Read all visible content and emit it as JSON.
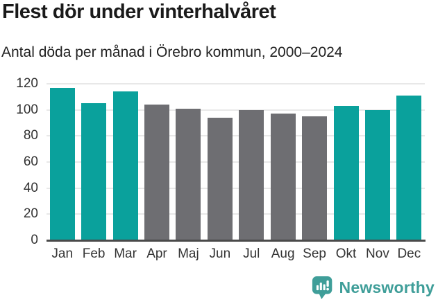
{
  "header": {
    "title": "Flest dör under vinterhalvåret",
    "subtitle": "Antal döda per månad i Örebro kommun, 2000–2024"
  },
  "chart_data": {
    "type": "bar",
    "title": "Flest dör under vinterhalvåret",
    "subtitle": "Antal döda per månad i Örebro kommun, 2000–2024",
    "categories": [
      "Jan",
      "Feb",
      "Mar",
      "Apr",
      "Maj",
      "Jun",
      "Jul",
      "Aug",
      "Sep",
      "Okt",
      "Nov",
      "Dec"
    ],
    "values": [
      117,
      105,
      114,
      104,
      101,
      94,
      100,
      97,
      95,
      103,
      100,
      111
    ],
    "bar_color_keys": [
      "highlight",
      "highlight",
      "highlight",
      "default",
      "default",
      "default",
      "default",
      "default",
      "default",
      "highlight",
      "highlight",
      "highlight"
    ],
    "colors": {
      "highlight": "#0aa19c",
      "default": "#6e6e72",
      "grid": "#e8e8e8",
      "axis": "#4a4a4a"
    },
    "xlabel": "",
    "ylabel": "",
    "ylim": [
      0,
      120
    ],
    "yticks": [
      0,
      20,
      40,
      60,
      80,
      100,
      120
    ],
    "grid": "horizontal",
    "legend": "none"
  },
  "footer": {
    "brand": "Newsworthy",
    "brand_color": "#3f9e99",
    "logo_icon": "bar-chart-speech-bubble-icon"
  }
}
